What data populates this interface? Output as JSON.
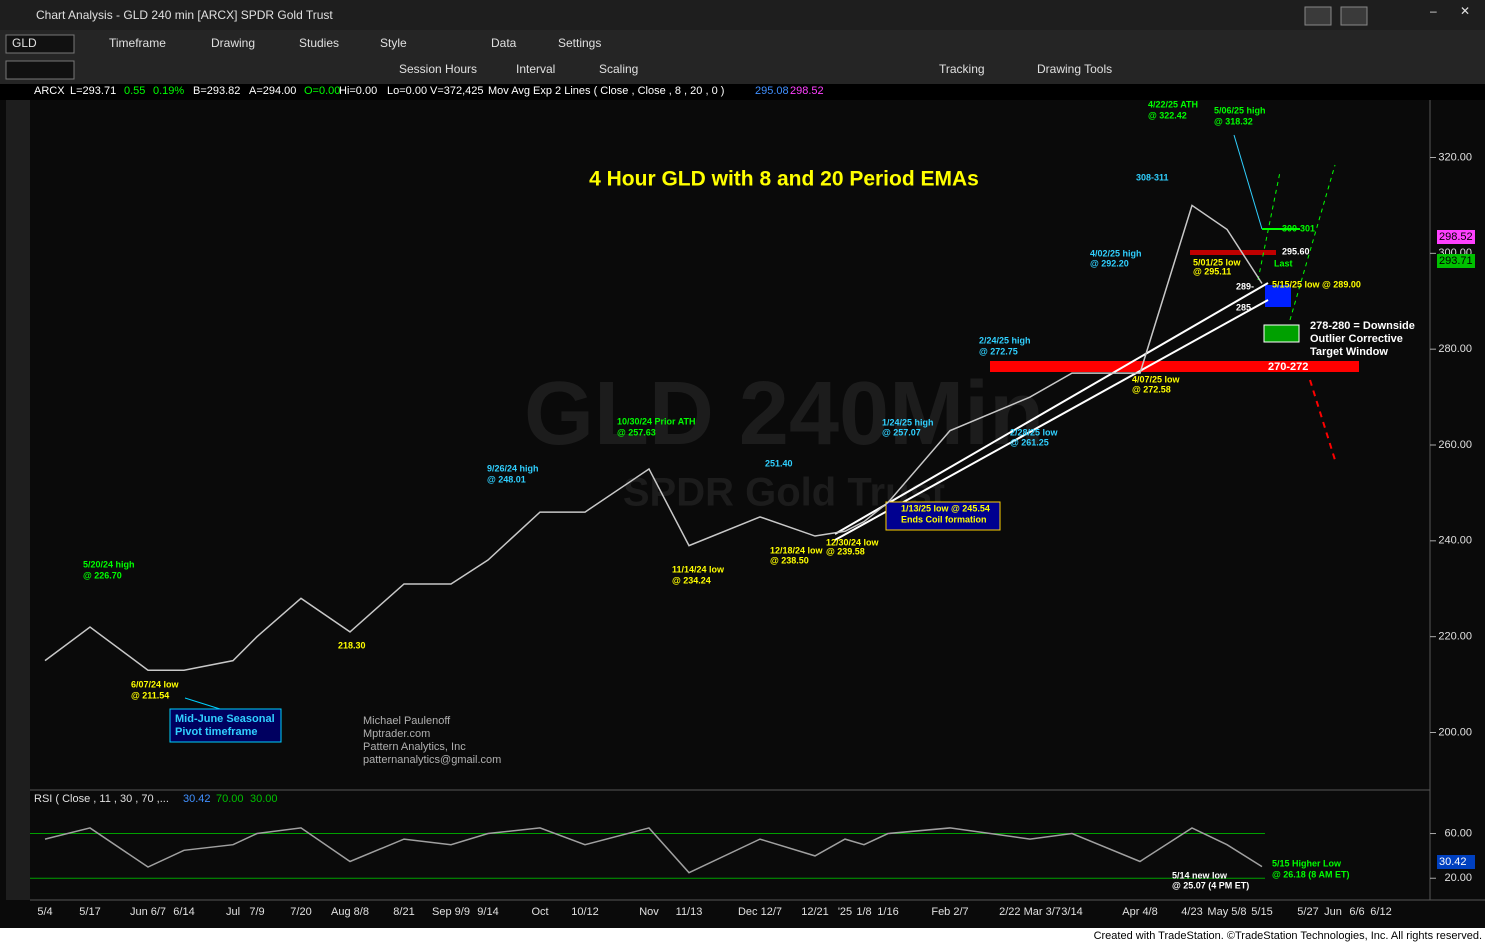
{
  "window": {
    "title": "Chart Analysis - GLD 240 min [ARCX] SPDR Gold Trust"
  },
  "toolbar1": {
    "symbol": "GLD",
    "items": [
      "Timeframe",
      "Drawing",
      "Studies",
      "Style",
      "Data",
      "Settings"
    ]
  },
  "toolbar2": {
    "items": [
      "Session Hours",
      "Interval",
      "Scaling",
      "Tracking",
      "Drawing Tools"
    ]
  },
  "status": {
    "texts": [
      "ARCX",
      "L=293.71",
      "0.55",
      "0.19%",
      "B=293.82",
      "A=294.00",
      "O=0.00",
      "Hi=0.00",
      "Lo=0.00",
      "V=372,425",
      "Mov Avg Exp 2 Lines ( Close , Close , 8 , 20 , 0 )",
      "295.08",
      "298.52"
    ]
  },
  "watermark": {
    "title": "GLD 240Min",
    "subtitle": "SPDR Gold Trust"
  },
  "chart_data": [
    {
      "type": "line",
      "title": "4 Hour GLD with 8 and 20 Period EMAs",
      "categories": [
        "5/4",
        "5/17",
        "Jun 6/7",
        "6/14",
        "Jul",
        "7/9",
        "7/20",
        "Aug 8/8",
        "8/21",
        "Sep 9/9",
        "9/14",
        "Oct",
        "10/12",
        "Nov",
        "11/13",
        "Dec 12/7",
        "12/21",
        "'25",
        "1/8",
        "1/16",
        "Feb 2/7",
        "2/22 Mar 3/7",
        "3/14",
        "Apr 4/8",
        "4/23",
        "May 5/8",
        "5/15",
        "5/27",
        "Jun",
        "6/6",
        "6/12"
      ],
      "series": [
        {
          "name": "GLD",
          "color": "#c8c8c8",
          "values": [
            215,
            222,
            213,
            213,
            215,
            220,
            228,
            221,
            231,
            231,
            236,
            246,
            246,
            255,
            239,
            245,
            241,
            242,
            244,
            248,
            263,
            270,
            275,
            275,
            310,
            305,
            293.71,
            null,
            null,
            null,
            null
          ]
        }
      ],
      "ylim": [
        188,
        332
      ],
      "yticks": [
        {
          "value": 200,
          "label": "200.00"
        },
        {
          "value": 220,
          "label": "220.00"
        },
        {
          "value": 240,
          "label": "240.00"
        },
        {
          "value": 260,
          "label": "260.00"
        },
        {
          "value": 280,
          "label": "280.00"
        },
        {
          "value": 300,
          "label": "300.00"
        },
        {
          "value": 320,
          "label": "320.00"
        }
      ],
      "last_labels": [
        "298.52",
        "293.71"
      ],
      "annotations": [
        "5/20/24 high",
        "@ 226.70",
        "6/07/24 low",
        "@ 211.54",
        "218.30",
        "9/26/24 high",
        "@ 248.01",
        "10/30/24 Prior ATH",
        "@ 257.63",
        "11/14/24 low",
        "@ 234.24",
        "251.40",
        "12/18/24 low",
        "@ 238.50",
        "12/30/24 low",
        "@ 239.58",
        "1/13/25 low @  245.54",
        "Ends Coil formation",
        "1/24/25 high",
        "@ 257.07",
        "2/24/25 high",
        "@ 272.75",
        "2/28/25 low",
        "@ 261.25",
        "4/02/25 high",
        "@ 292.20",
        "4/07/25 low",
        "@ 272.58",
        "4/22/25 ATH",
        "@ 322.42",
        "5/06/25 high",
        "@ 318.32",
        "308-311",
        "300-301",
        "295.60",
        "5/01/25 low",
        "@ 295.11",
        "Last",
        "5/15/25 low @ 289.00",
        "289-",
        "285",
        "278-280 = Downside",
        "Outlier Corrective",
        "Target Window",
        "270-272",
        "Mid-June Seasonal",
        "Pivot timeframe",
        "Michael Paulenoff",
        "Mptrader.com",
        "Pattern Analytics, Inc",
        "patternanalytics@gmail.com"
      ]
    },
    {
      "type": "line",
      "title": "RSI ( Close , 11 , 30 , 70 ,...",
      "legend_values": [
        "30.42",
        "70.00",
        "30.00"
      ],
      "series": [
        {
          "name": "RSI",
          "color": "#a0a0a0",
          "values": [
            55,
            65,
            30,
            45,
            50,
            60,
            65,
            35,
            55,
            50,
            60,
            65,
            50,
            65,
            25,
            55,
            40,
            55,
            50,
            60,
            65,
            55,
            60,
            35,
            65,
            50,
            30.42,
            null,
            null,
            null,
            null
          ]
        }
      ],
      "ylim": [
        5,
        90
      ],
      "yticks": [
        {
          "value": 20,
          "label": "20.00"
        },
        {
          "value": 60,
          "label": "60.00"
        }
      ],
      "last_label": "30.42",
      "annotations": [
        "5/14 new low",
        "@ 25.07 (4 PM ET)",
        "5/15 Higher Low",
        "@ 26.18 (8 AM ET)"
      ]
    }
  ],
  "footer": "Created with TradeStation. ©TradeStation Technologies, Inc. All rights reserved."
}
